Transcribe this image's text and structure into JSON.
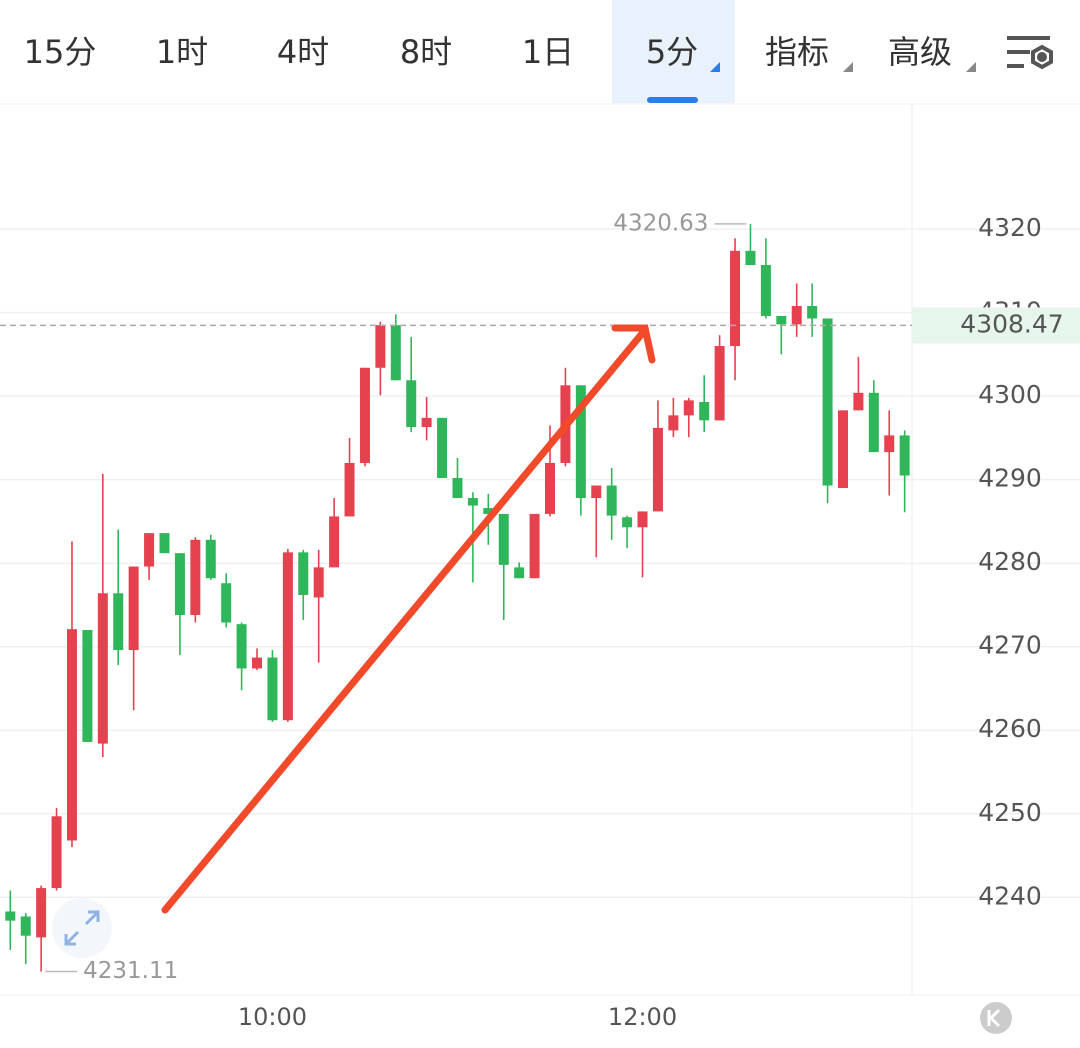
{
  "tabs": [
    "15分",
    "1时",
    "4时",
    "8时",
    "1日",
    "5分",
    "指标",
    "高级"
  ],
  "active_tab": 5,
  "chart_data": {
    "type": "candlestick",
    "categories": [
      null,
      null,
      null,
      null,
      null,
      null,
      null,
      null,
      null,
      null,
      null,
      null,
      null,
      null,
      null,
      null,
      null,
      "10:00",
      null,
      null,
      null,
      null,
      null,
      null,
      null,
      null,
      null,
      null,
      null,
      null,
      null,
      null,
      null,
      null,
      null,
      null,
      null,
      null,
      null,
      null,
      null,
      "12:00",
      null,
      null,
      null,
      null,
      null,
      null,
      null,
      null,
      null,
      null,
      null,
      null,
      null,
      null,
      null,
      null,
      null
    ],
    "open": [
      4238.3,
      4237.7,
      4235.2,
      4241.1,
      4246.8,
      4272.0,
      4258.4,
      4276.4,
      4269.6,
      4279.6,
      4283.6,
      4281.2,
      4273.8,
      4282.8,
      4277.6,
      4272.7,
      4267.4,
      4268.7,
      4261.2,
      4281.3,
      4275.9,
      4279.5,
      4285.6,
      4292.0,
      4303.4,
      4308.5,
      4301.9,
      4296.3,
      4297.4,
      4290.2,
      4287.8,
      4286.6,
      4285.9,
      4279.5,
      4278.2,
      4285.9,
      4292.0,
      4301.3,
      4287.8,
      4289.3,
      4285.5,
      4284.3,
      4286.2,
      4295.9,
      4297.7,
      4299.3,
      4297.1,
      4306.0,
      4317.4,
      4315.7,
      4309.6,
      4308.6,
      4310.8,
      4309.3,
      4289.0,
      4298.3,
      4300.4,
      4293.3,
      4295.3
    ],
    "high": [
      4240.8,
      4238.1,
      4241.4,
      4250.7,
      4282.6,
      4272.0,
      4290.7,
      4284.0,
      4279.6,
      4283.6,
      4283.6,
      4281.2,
      4283.1,
      4283.4,
      4278.8,
      4272.9,
      4269.8,
      4269.6,
      4281.7,
      4281.6,
      4281.6,
      4287.8,
      4295.0,
      4303.4,
      4308.9,
      4309.8,
      4307.1,
      4299.9,
      4297.4,
      4292.6,
      4288.5,
      4288.3,
      4285.9,
      4280.1,
      4285.9,
      4296.5,
      4303.4,
      4301.3,
      4289.3,
      4291.4,
      4285.7,
      4286.2,
      4299.5,
      4299.8,
      4299.8,
      4302.5,
      4307.3,
      4318.9,
      4320.63,
      4318.9,
      4309.6,
      4313.5,
      4313.5,
      4309.3,
      4298.3,
      4304.7,
      4301.9,
      4298.3,
      4295.9
    ],
    "low": [
      4233.7,
      4232.0,
      4231.11,
      4240.8,
      4246.0,
      4258.6,
      4256.8,
      4267.8,
      4262.4,
      4278.0,
      4281.2,
      4269.0,
      4272.9,
      4278.0,
      4272.3,
      4264.8,
      4267.2,
      4261.0,
      4261.0,
      4273.2,
      4268.1,
      4279.5,
      4285.6,
      4291.6,
      4300.1,
      4301.9,
      4295.7,
      4294.7,
      4290.2,
      4287.8,
      4277.7,
      4282.2,
      4273.2,
      4278.2,
      4278.2,
      4285.6,
      4291.6,
      4285.7,
      4280.7,
      4282.8,
      4281.8,
      4278.3,
      4286.2,
      4295.1,
      4295.1,
      4295.7,
      4297.1,
      4301.9,
      4315.7,
      4309.3,
      4305.0,
      4307.1,
      4307.1,
      4287.2,
      4289.0,
      4298.3,
      4293.3,
      4288.1,
      4286.1
    ],
    "close": [
      4237.2,
      4235.4,
      4241.1,
      4249.7,
      4272.1,
      4258.6,
      4276.4,
      4269.6,
      4279.6,
      4283.6,
      4281.2,
      4273.8,
      4282.8,
      4278.2,
      4272.9,
      4267.4,
      4268.7,
      4261.2,
      4281.3,
      4276.2,
      4279.5,
      4285.6,
      4292.0,
      4303.4,
      4308.5,
      4301.9,
      4296.3,
      4297.4,
      4290.2,
      4287.8,
      4286.9,
      4285.9,
      4279.8,
      4278.2,
      4285.9,
      4292.0,
      4301.3,
      4287.8,
      4289.3,
      4285.7,
      4284.3,
      4286.2,
      4296.2,
      4297.7,
      4299.5,
      4297.1,
      4306.0,
      4317.4,
      4315.7,
      4309.6,
      4308.6,
      4310.8,
      4309.3,
      4289.3,
      4298.3,
      4300.4,
      4293.3,
      4295.3,
      4290.5
    ],
    "ylim": [
      4228.3,
      4335.1
    ],
    "yticks": [
      4240,
      4250,
      4260,
      4270,
      4280,
      4290,
      4300,
      4310,
      4320
    ],
    "current_price": 4308.47,
    "high_label_index": 48,
    "low_label_index": 2,
    "up_color": "#e5414f",
    "down_color": "#2fb65a",
    "grid": true
  }
}
